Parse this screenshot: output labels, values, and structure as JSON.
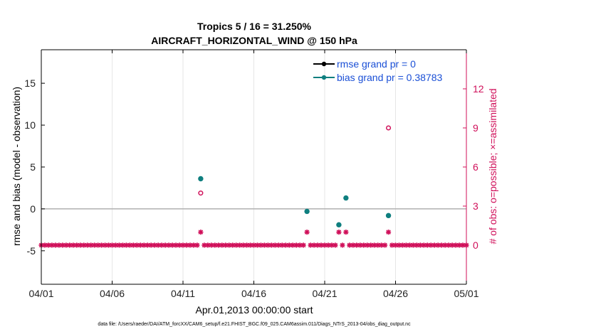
{
  "chart_data": {
    "type": "scatter",
    "title_line1": "Tropics 5 / 16 = 31.250%",
    "title_line2": "AIRCRAFT_HORIZONTAL_WIND @ 150 hPa",
    "xlabel": "Apr.01,2013 00:00:00 start",
    "ylabel_left": "rmse and bias (model - observation)",
    "ylabel_right": "# of obs: o=possible; ×=assimilated",
    "footer": "data file: /Users/raeder/DAI/ATM_forcXX/CAM6_setup/f.e21.FHIST_BGC.f09_025.CAM6assim.011/Diags_NTrS_2013-04/obs_diag_output.nc",
    "x_tick_labels": [
      "04/01",
      "04/06",
      "04/11",
      "04/16",
      "04/21",
      "04/26",
      "05/01"
    ],
    "x_tick_values": [
      0,
      5,
      10,
      15,
      20,
      25,
      30
    ],
    "xlim": [
      0,
      30
    ],
    "ylim_left": [
      -9,
      19
    ],
    "y_tick_values_left": [
      -5,
      0,
      5,
      10,
      15
    ],
    "y_tick_labels_left": [
      "-5",
      "0",
      "5",
      "10",
      "15"
    ],
    "ylim_right": [
      -3,
      15.0
    ],
    "y_tick_values_right": [
      0,
      3,
      6,
      9,
      12
    ],
    "y_tick_labels_right": [
      "0",
      "3",
      "6",
      "9",
      "12"
    ],
    "zero_line": 0,
    "legend": [
      {
        "label": "rmse grand pr = 0",
        "color": "#000000"
      },
      {
        "label": "bias grand pr = 0.38783",
        "color": "#0f7f7f"
      }
    ],
    "colors": {
      "rmse": "#000000",
      "bias": "#0f7f7f",
      "obs": "#d0105a",
      "zero_line": "#b0b0b0"
    },
    "bias_points": {
      "x": [
        11.25,
        18.75,
        21.0,
        21.5,
        24.5
      ],
      "y": [
        3.6,
        -0.3,
        -1.9,
        1.3,
        -0.8
      ]
    },
    "possible_obs": {
      "x": [
        11.25,
        24.5
      ],
      "y": [
        4,
        9
      ]
    },
    "assimilated_obs_nonzero": {
      "x": [
        11.25,
        18.75,
        21.0,
        21.5,
        24.5
      ],
      "y": [
        1,
        1,
        1,
        1,
        1
      ]
    },
    "zero_obs_x_range": [
      0,
      30
    ],
    "zero_obs_step": 0.25,
    "zero_obs_value": 0
  }
}
